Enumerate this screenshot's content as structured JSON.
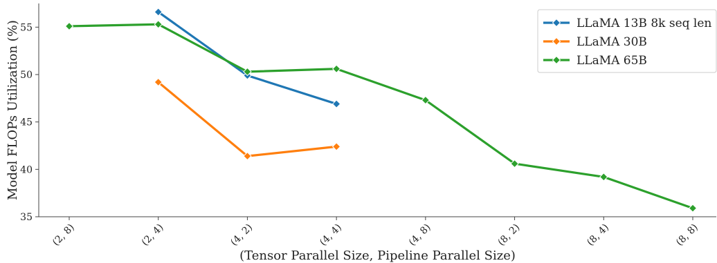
{
  "chart_data": {
    "type": "line",
    "categories": [
      "(2, 8)",
      "(2, 4)",
      "(4, 2)",
      "(4, 4)",
      "(4, 8)",
      "(8, 2)",
      "(8, 4)",
      "(8, 8)"
    ],
    "xlabel": "(Tensor Parallel Size, Pipeline Parallel Size)",
    "ylabel": "Model FLOPs Utilization (%)",
    "ylim": [
      35,
      57.5
    ],
    "yticks": [
      35,
      40,
      45,
      50,
      55
    ],
    "grid": false,
    "legend_position": "top-right",
    "marker": "diamond",
    "series": [
      {
        "name": "LLaMA 13B 8k seq len",
        "color": "#1f77b4",
        "values": [
          null,
          56.6,
          49.9,
          46.9,
          null,
          null,
          null,
          null
        ]
      },
      {
        "name": "LLaMA 30B",
        "color": "#ff7f0e",
        "values": [
          null,
          49.2,
          41.4,
          42.4,
          null,
          null,
          null,
          null
        ]
      },
      {
        "name": "LLaMA 65B",
        "color": "#2ca02c",
        "values": [
          55.1,
          55.3,
          50.3,
          50.6,
          47.3,
          40.6,
          39.2,
          35.9
        ]
      }
    ]
  }
}
